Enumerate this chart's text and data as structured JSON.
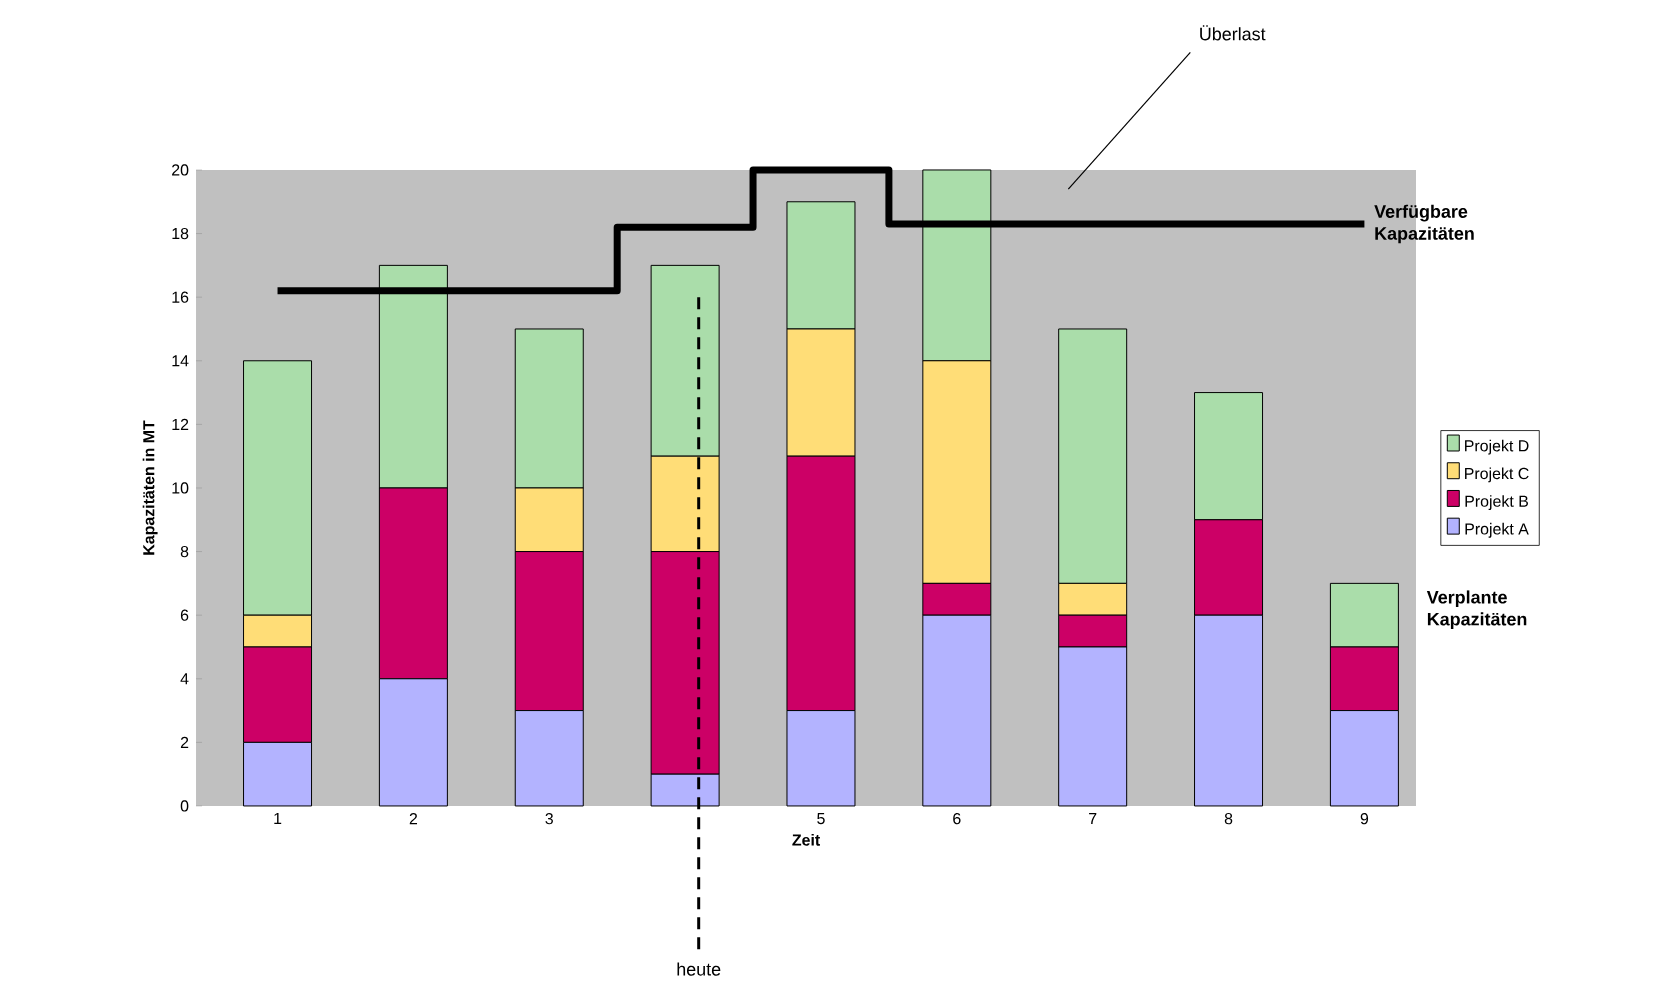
{
  "chart_data": {
    "type": "bar",
    "stacked": true,
    "xlabel": "Zeit",
    "ylabel": "Kapazitäten in MT",
    "x": [
      1,
      2,
      3,
      4,
      5,
      6,
      7,
      8,
      9
    ],
    "xlim": [
      0.4,
      9.38
    ],
    "xticks": [
      1,
      2,
      3,
      5,
      6,
      7,
      8,
      9
    ],
    "series": [
      {
        "name": "Projekt A",
        "color": "#b3b3ff",
        "values": [
          2,
          4,
          3,
          1,
          3,
          6,
          5,
          6,
          3
        ]
      },
      {
        "name": "Projekt B",
        "color": "#cc0066",
        "values": [
          3,
          6,
          5,
          7,
          8,
          1,
          1,
          3,
          2
        ]
      },
      {
        "name": "Projekt C",
        "color": "#ffdd77",
        "values": [
          1,
          0,
          2,
          3,
          4,
          7,
          1,
          0,
          0
        ]
      },
      {
        "name": "Projekt D",
        "color": "#aaddaa",
        "values": [
          8,
          7,
          5,
          6,
          4,
          6,
          8,
          4,
          2
        ]
      },
      {
        "name": "Verfügbare Kapazitäten",
        "type": "step",
        "color": "#000000",
        "values": [
          16.2,
          16.2,
          16.2,
          18.2,
          20,
          18.3,
          18.3,
          18.3,
          18.3
        ]
      }
    ],
    "ylim": [
      0,
      20
    ],
    "yticks": [
      0,
      2,
      4,
      6,
      8,
      10,
      12,
      14,
      16,
      18,
      20
    ],
    "ref_lines": [
      {
        "axis": "x",
        "value": 4.1,
        "label": "heute",
        "color": "#000000",
        "line_style": "dashed"
      }
    ],
    "annotations": [
      "Überlast",
      "Verplante Kapazitäten"
    ],
    "legend": "right"
  }
}
